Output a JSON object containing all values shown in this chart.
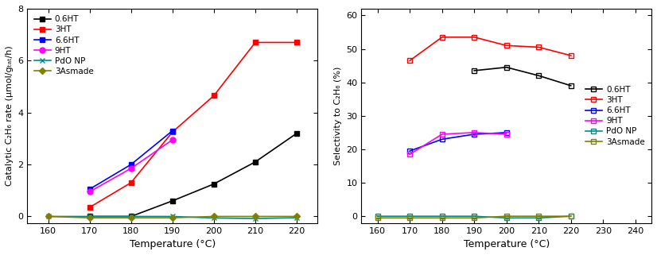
{
  "left": {
    "xlabel": "Temperature (°C)",
    "ylabel": "Catalytic C₂H₆ rate (μmol/gₜₐₜ/h)",
    "xlim": [
      155,
      225
    ],
    "ylim": [
      -0.25,
      8
    ],
    "xticks": [
      160,
      170,
      180,
      190,
      200,
      210,
      220
    ],
    "yticks": [
      0,
      2,
      4,
      6,
      8
    ],
    "series": [
      {
        "label": "0.6HT",
        "x": [
          170,
          180,
          190,
          200,
          210,
          220
        ],
        "y": [
          0.0,
          0.0,
          0.6,
          1.25,
          2.1,
          3.2
        ],
        "color": "#000000",
        "marker": "s",
        "markersize": 5,
        "fillstyle": "full",
        "linewidth": 1.2
      },
      {
        "label": "3HT",
        "x": [
          170,
          180,
          190,
          200,
          210,
          220
        ],
        "y": [
          0.35,
          1.3,
          3.25,
          4.65,
          6.7,
          6.7
        ],
        "color": "#ff0000",
        "marker": "s",
        "markersize": 5,
        "fillstyle": "full",
        "linewidth": 1.2
      },
      {
        "label": "6.6HT",
        "x": [
          170,
          180,
          190
        ],
        "y": [
          1.05,
          2.0,
          3.3
        ],
        "color": "#0000ff",
        "marker": "s",
        "markersize": 5,
        "fillstyle": "full",
        "linewidth": 1.2
      },
      {
        "label": "9HT",
        "x": [
          170,
          180,
          190
        ],
        "y": [
          0.95,
          1.85,
          2.95
        ],
        "color": "#ff00ff",
        "marker": "o",
        "markersize": 5,
        "fillstyle": "full",
        "linewidth": 1.2
      },
      {
        "label": "PdO NP",
        "x": [
          160,
          170,
          180,
          190,
          200,
          210,
          220
        ],
        "y": [
          0.0,
          0.0,
          0.0,
          0.0,
          -0.06,
          -0.08,
          -0.05
        ],
        "color": "#008b8b",
        "marker": "x",
        "markersize": 5,
        "fillstyle": "full",
        "linewidth": 1.2
      },
      {
        "label": "3Asmade",
        "x": [
          160,
          170,
          180,
          190,
          200,
          210,
          220
        ],
        "y": [
          0.0,
          -0.05,
          -0.05,
          -0.05,
          0.0,
          0.0,
          0.0
        ],
        "color": "#808000",
        "marker": "D",
        "markersize": 4,
        "fillstyle": "full",
        "linewidth": 1.2
      }
    ]
  },
  "right": {
    "xlabel": "Temperature (°C)",
    "ylabel": "Selectivity to C₂H₆ (%)",
    "xlim": [
      155,
      245
    ],
    "ylim": [
      -2,
      62
    ],
    "xticks": [
      160,
      170,
      180,
      190,
      200,
      210,
      220,
      230,
      240
    ],
    "yticks": [
      0,
      10,
      20,
      30,
      40,
      50,
      60
    ],
    "series": [
      {
        "label": "0.6HT",
        "x": [
          190,
          200,
          210,
          220
        ],
        "y": [
          43.5,
          44.5,
          42.0,
          39.0
        ],
        "color": "#000000",
        "marker": "s",
        "markersize": 5,
        "fillstyle": "none",
        "linewidth": 1.2
      },
      {
        "label": "3HT",
        "x": [
          170,
          180,
          190,
          200,
          210,
          220
        ],
        "y": [
          46.5,
          53.5,
          53.5,
          51.0,
          50.5,
          48.0
        ],
        "color": "#ff0000",
        "marker": "s",
        "markersize": 5,
        "fillstyle": "none",
        "linewidth": 1.2
      },
      {
        "label": "6.6HT",
        "x": [
          170,
          180,
          190,
          200
        ],
        "y": [
          19.5,
          23.0,
          24.5,
          25.0
        ],
        "color": "#0000ff",
        "marker": "s",
        "markersize": 5,
        "fillstyle": "none",
        "linewidth": 1.2
      },
      {
        "label": "9HT",
        "x": [
          170,
          180,
          190,
          200
        ],
        "y": [
          18.5,
          24.5,
          25.0,
          24.5
        ],
        "color": "#ff00ff",
        "marker": "s",
        "markersize": 5,
        "fillstyle": "none",
        "linewidth": 1.2
      },
      {
        "label": "PdO NP",
        "x": [
          160,
          170,
          180,
          190,
          200,
          210,
          220
        ],
        "y": [
          0.0,
          0.0,
          0.0,
          0.0,
          -0.5,
          -0.5,
          0.0
        ],
        "color": "#008b8b",
        "marker": "s",
        "markersize": 5,
        "fillstyle": "none",
        "linewidth": 1.2
      },
      {
        "label": "3Asmade",
        "x": [
          160,
          170,
          180,
          190,
          200,
          210,
          220
        ],
        "y": [
          -0.5,
          -0.5,
          -0.5,
          -0.5,
          0.0,
          0.0,
          0.0
        ],
        "color": "#808000",
        "marker": "s",
        "markersize": 5,
        "fillstyle": "none",
        "linewidth": 1.2
      }
    ]
  }
}
